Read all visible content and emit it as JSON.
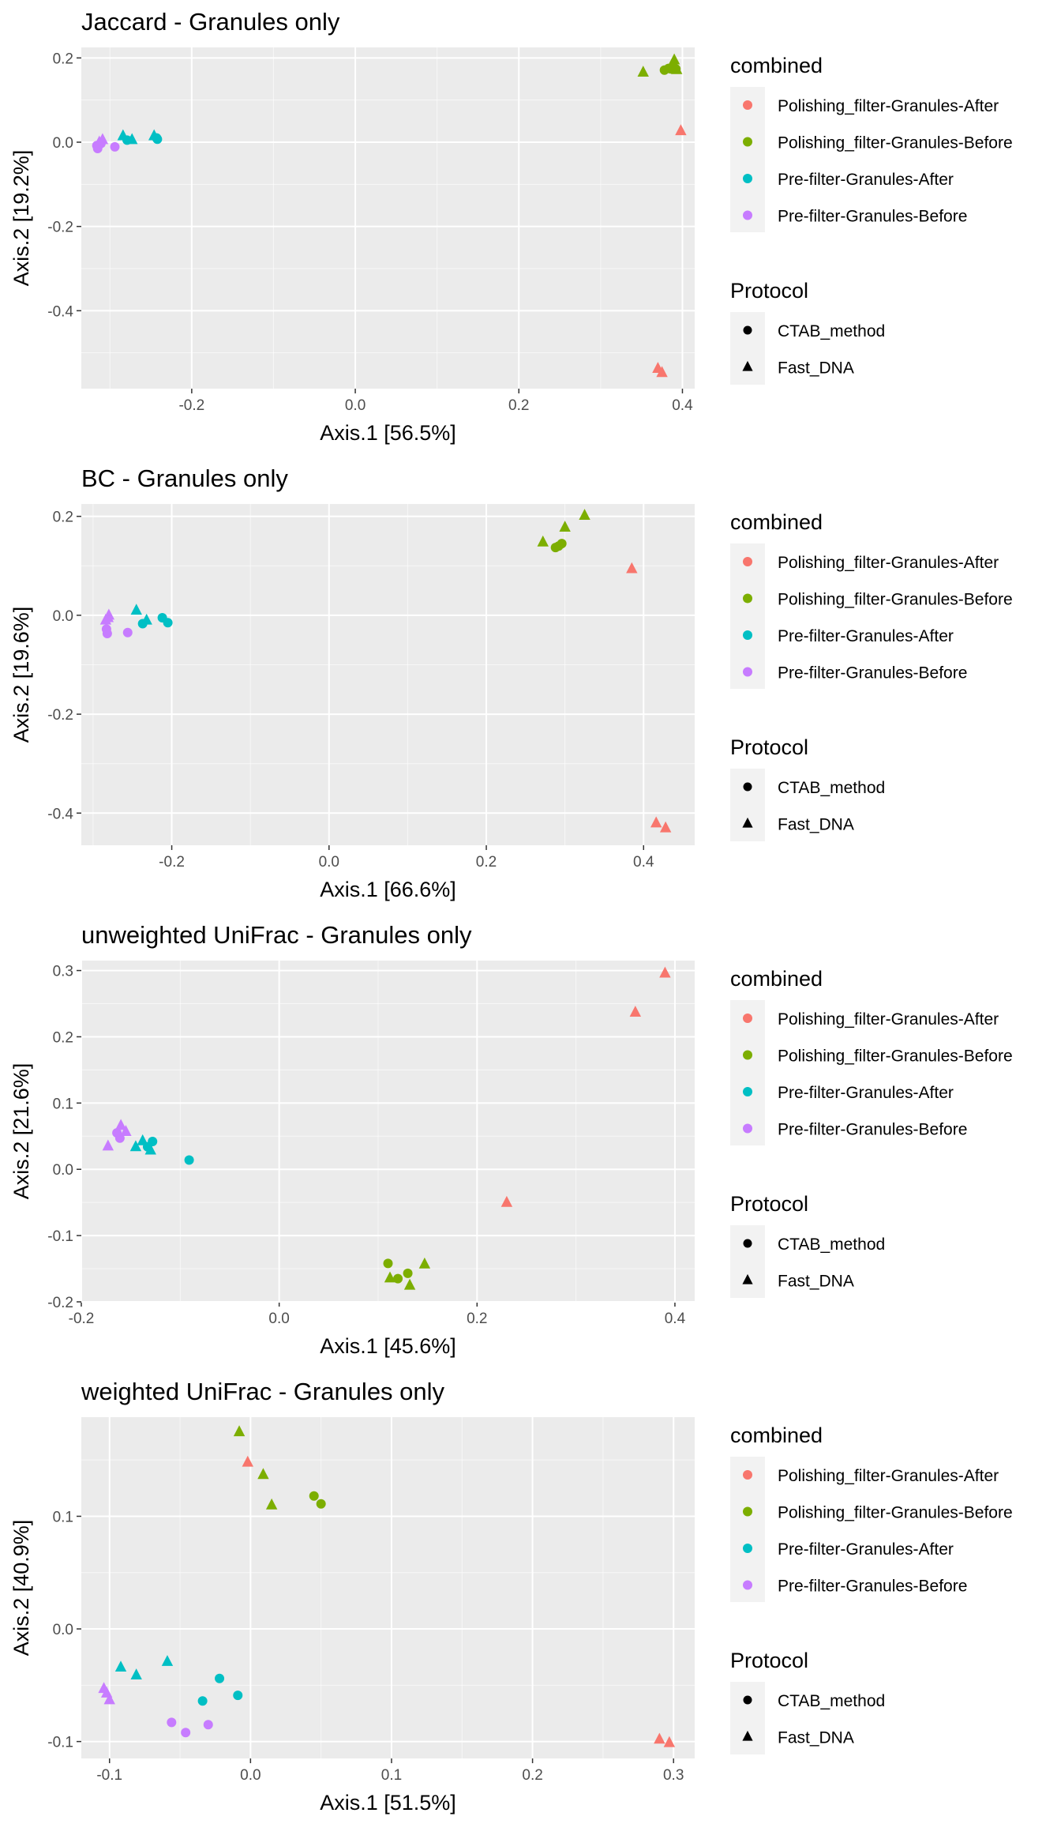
{
  "colors": {
    "Polishing_filter-Granules-After": "#F8766D",
    "Polishing_filter-Granules-Before": "#7CAE00",
    "Pre-filter-Granules-After": "#00BFC4",
    "Pre-filter-Granules-Before": "#C77CFF",
    "panel_bg": "#EBEBEB",
    "grid_major": "#FFFFFF"
  },
  "legend": {
    "combined_title": "combined",
    "combined_items": [
      "Polishing_filter-Granules-After",
      "Polishing_filter-Granules-Before",
      "Pre-filter-Granules-After",
      "Pre-filter-Granules-Before"
    ],
    "protocol_title": "Protocol",
    "protocol_items": [
      {
        "label": "CTAB_method",
        "shape": "circle"
      },
      {
        "label": "Fast_DNA",
        "shape": "triangle"
      }
    ]
  },
  "chart_data": [
    {
      "type": "scatter",
      "title": "Jaccard - Granules only",
      "xlabel": "Axis.1   [56.5%]",
      "ylabel": "Axis.2   [19.2%]",
      "xlim": [
        -0.335,
        0.415
      ],
      "ylim": [
        -0.585,
        0.225
      ],
      "xticks": [
        -0.2,
        0.0,
        0.2,
        0.4
      ],
      "yticks": [
        -0.4,
        -0.2,
        0.0,
        0.2
      ],
      "xtick_labels": [
        "-0.2",
        "0.0",
        "0.2",
        "0.4"
      ],
      "ytick_labels": [
        "-0.4",
        "-0.2",
        "0.0",
        "0.2"
      ],
      "series": [
        {
          "name": "Polishing_filter-Granules-After",
          "points": [
            {
              "x": 0.398,
              "y": 0.027,
              "shape": "triangle"
            },
            {
              "x": 0.37,
              "y": -0.537,
              "shape": "triangle"
            },
            {
              "x": 0.375,
              "y": -0.547,
              "shape": "triangle"
            }
          ]
        },
        {
          "name": "Polishing_filter-Granules-Before",
          "points": [
            {
              "x": 0.352,
              "y": 0.166,
              "shape": "triangle"
            },
            {
              "x": 0.378,
              "y": 0.171,
              "shape": "circle"
            },
            {
              "x": 0.383,
              "y": 0.175,
              "shape": "circle"
            },
            {
              "x": 0.386,
              "y": 0.174,
              "shape": "circle"
            },
            {
              "x": 0.388,
              "y": 0.178,
              "shape": "circle"
            },
            {
              "x": 0.392,
              "y": 0.174,
              "shape": "circle"
            },
            {
              "x": 0.39,
              "y": 0.195,
              "shape": "triangle"
            },
            {
              "x": 0.393,
              "y": 0.172,
              "shape": "triangle"
            }
          ]
        },
        {
          "name": "Pre-filter-Granules-After",
          "points": [
            {
              "x": -0.284,
              "y": 0.015,
              "shape": "triangle"
            },
            {
              "x": -0.279,
              "y": 0.005,
              "shape": "circle"
            },
            {
              "x": -0.273,
              "y": 0.006,
              "shape": "triangle"
            },
            {
              "x": -0.246,
              "y": 0.015,
              "shape": "triangle"
            },
            {
              "x": -0.243,
              "y": 0.01,
              "shape": "circle"
            },
            {
              "x": -0.242,
              "y": 0.007,
              "shape": "circle"
            }
          ]
        },
        {
          "name": "Pre-filter-Granules-Before",
          "points": [
            {
              "x": -0.316,
              "y": -0.008,
              "shape": "circle"
            },
            {
              "x": -0.315,
              "y": -0.015,
              "shape": "circle"
            },
            {
              "x": -0.313,
              "y": 0.0,
              "shape": "triangle"
            },
            {
              "x": -0.311,
              "y": -0.003,
              "shape": "circle"
            },
            {
              "x": -0.309,
              "y": 0.006,
              "shape": "triangle"
            },
            {
              "x": -0.294,
              "y": -0.011,
              "shape": "circle"
            }
          ]
        }
      ]
    },
    {
      "type": "scatter",
      "title": "BC - Granules only",
      "xlabel": "Axis.1   [66.6%]",
      "ylabel": "Axis.2   [19.6%]",
      "xlim": [
        -0.315,
        0.465
      ],
      "ylim": [
        -0.465,
        0.225
      ],
      "xticks": [
        -0.2,
        0.0,
        0.2,
        0.4
      ],
      "yticks": [
        -0.4,
        -0.2,
        0.0,
        0.2
      ],
      "xtick_labels": [
        "-0.2",
        "0.0",
        "0.2",
        "0.4"
      ],
      "ytick_labels": [
        "-0.4",
        "-0.2",
        "0.0",
        "0.2"
      ],
      "series": [
        {
          "name": "Polishing_filter-Granules-After",
          "points": [
            {
              "x": 0.385,
              "y": 0.094,
              "shape": "triangle"
            },
            {
              "x": 0.416,
              "y": -0.42,
              "shape": "triangle"
            },
            {
              "x": 0.428,
              "y": -0.43,
              "shape": "triangle"
            }
          ]
        },
        {
          "name": "Polishing_filter-Granules-Before",
          "points": [
            {
              "x": 0.272,
              "y": 0.148,
              "shape": "triangle"
            },
            {
              "x": 0.288,
              "y": 0.137,
              "shape": "circle"
            },
            {
              "x": 0.292,
              "y": 0.14,
              "shape": "circle"
            },
            {
              "x": 0.296,
              "y": 0.145,
              "shape": "circle"
            },
            {
              "x": 0.3,
              "y": 0.178,
              "shape": "triangle"
            },
            {
              "x": 0.325,
              "y": 0.202,
              "shape": "triangle"
            }
          ]
        },
        {
          "name": "Pre-filter-Granules-After",
          "points": [
            {
              "x": -0.245,
              "y": 0.01,
              "shape": "triangle"
            },
            {
              "x": -0.237,
              "y": -0.017,
              "shape": "circle"
            },
            {
              "x": -0.232,
              "y": -0.01,
              "shape": "triangle"
            },
            {
              "x": -0.212,
              "y": -0.005,
              "shape": "circle"
            },
            {
              "x": -0.205,
              "y": -0.015,
              "shape": "circle"
            }
          ]
        },
        {
          "name": "Pre-filter-Granules-Before",
          "points": [
            {
              "x": -0.284,
              "y": -0.01,
              "shape": "triangle"
            },
            {
              "x": -0.283,
              "y": -0.028,
              "shape": "circle"
            },
            {
              "x": -0.282,
              "y": -0.037,
              "shape": "circle"
            },
            {
              "x": -0.281,
              "y": -0.005,
              "shape": "triangle"
            },
            {
              "x": -0.28,
              "y": 0.0,
              "shape": "triangle"
            },
            {
              "x": -0.256,
              "y": -0.035,
              "shape": "circle"
            }
          ]
        }
      ]
    },
    {
      "type": "scatter",
      "title": "unweighted UniFrac - Granules only",
      "xlabel": "Axis.1   [45.6%]",
      "ylabel": "Axis.2   [21.6%]",
      "xlim": [
        -0.2,
        0.42
      ],
      "ylim": [
        -0.2,
        0.315
      ],
      "xticks": [
        -0.2,
        0.0,
        0.2,
        0.4
      ],
      "yticks": [
        -0.2,
        -0.1,
        0.0,
        0.1,
        0.2,
        0.3
      ],
      "xtick_labels": [
        "-0.2",
        "0.0",
        "0.2",
        "0.4"
      ],
      "ytick_labels": [
        "-0.2",
        "-0.1",
        "0.0",
        "0.1",
        "0.2",
        "0.3"
      ],
      "series": [
        {
          "name": "Polishing_filter-Granules-After",
          "points": [
            {
              "x": 0.39,
              "y": 0.296,
              "shape": "triangle"
            },
            {
              "x": 0.36,
              "y": 0.237,
              "shape": "triangle"
            },
            {
              "x": 0.23,
              "y": -0.05,
              "shape": "triangle"
            }
          ]
        },
        {
          "name": "Polishing_filter-Granules-Before",
          "points": [
            {
              "x": 0.11,
              "y": -0.142,
              "shape": "circle"
            },
            {
              "x": 0.112,
              "y": -0.164,
              "shape": "triangle"
            },
            {
              "x": 0.12,
              "y": -0.165,
              "shape": "circle"
            },
            {
              "x": 0.13,
              "y": -0.157,
              "shape": "circle"
            },
            {
              "x": 0.132,
              "y": -0.175,
              "shape": "triangle"
            },
            {
              "x": 0.147,
              "y": -0.143,
              "shape": "triangle"
            }
          ]
        },
        {
          "name": "Pre-filter-Granules-After",
          "points": [
            {
              "x": -0.145,
              "y": 0.034,
              "shape": "triangle"
            },
            {
              "x": -0.138,
              "y": 0.043,
              "shape": "triangle"
            },
            {
              "x": -0.133,
              "y": 0.034,
              "shape": "circle"
            },
            {
              "x": -0.13,
              "y": 0.029,
              "shape": "triangle"
            },
            {
              "x": -0.128,
              "y": 0.042,
              "shape": "circle"
            },
            {
              "x": -0.091,
              "y": 0.014,
              "shape": "circle"
            }
          ]
        },
        {
          "name": "Pre-filter-Granules-Before",
          "points": [
            {
              "x": -0.173,
              "y": 0.035,
              "shape": "triangle"
            },
            {
              "x": -0.164,
              "y": 0.055,
              "shape": "circle"
            },
            {
              "x": -0.161,
              "y": 0.047,
              "shape": "circle"
            },
            {
              "x": -0.16,
              "y": 0.066,
              "shape": "triangle"
            },
            {
              "x": -0.155,
              "y": 0.057,
              "shape": "triangle"
            }
          ]
        }
      ]
    },
    {
      "type": "scatter",
      "title": "weighted UniFrac - Granules only",
      "xlabel": "Axis.1   [51.5%]",
      "ylabel": "Axis.2   [40.9%]",
      "xlim": [
        -0.12,
        0.315
      ],
      "ylim": [
        -0.115,
        0.188
      ],
      "xticks": [
        -0.1,
        0.0,
        0.1,
        0.2,
        0.3
      ],
      "yticks": [
        -0.1,
        0.0,
        0.1
      ],
      "xtick_labels": [
        "-0.1",
        "0.0",
        "0.1",
        "0.2",
        "0.3"
      ],
      "ytick_labels": [
        "-0.1",
        "0.0",
        "0.1"
      ],
      "series": [
        {
          "name": "Polishing_filter-Granules-After",
          "points": [
            {
              "x": -0.002,
              "y": 0.148,
              "shape": "triangle"
            },
            {
              "x": 0.29,
              "y": -0.098,
              "shape": "triangle"
            },
            {
              "x": 0.297,
              "y": -0.101,
              "shape": "triangle"
            }
          ]
        },
        {
          "name": "Polishing_filter-Granules-Before",
          "points": [
            {
              "x": -0.008,
              "y": 0.175,
              "shape": "triangle"
            },
            {
              "x": 0.009,
              "y": 0.137,
              "shape": "triangle"
            },
            {
              "x": 0.015,
              "y": 0.11,
              "shape": "triangle"
            },
            {
              "x": 0.045,
              "y": 0.118,
              "shape": "circle"
            },
            {
              "x": 0.05,
              "y": 0.111,
              "shape": "circle"
            }
          ]
        },
        {
          "name": "Pre-filter-Granules-After",
          "points": [
            {
              "x": -0.092,
              "y": -0.034,
              "shape": "triangle"
            },
            {
              "x": -0.081,
              "y": -0.041,
              "shape": "triangle"
            },
            {
              "x": -0.059,
              "y": -0.029,
              "shape": "triangle"
            },
            {
              "x": -0.034,
              "y": -0.064,
              "shape": "circle"
            },
            {
              "x": -0.022,
              "y": -0.044,
              "shape": "circle"
            },
            {
              "x": -0.009,
              "y": -0.059,
              "shape": "circle"
            }
          ]
        },
        {
          "name": "Pre-filter-Granules-Before",
          "points": [
            {
              "x": -0.104,
              "y": -0.053,
              "shape": "triangle"
            },
            {
              "x": -0.102,
              "y": -0.057,
              "shape": "triangle"
            },
            {
              "x": -0.1,
              "y": -0.063,
              "shape": "triangle"
            },
            {
              "x": -0.056,
              "y": -0.083,
              "shape": "circle"
            },
            {
              "x": -0.046,
              "y": -0.092,
              "shape": "circle"
            },
            {
              "x": -0.03,
              "y": -0.085,
              "shape": "circle"
            }
          ]
        }
      ]
    }
  ]
}
